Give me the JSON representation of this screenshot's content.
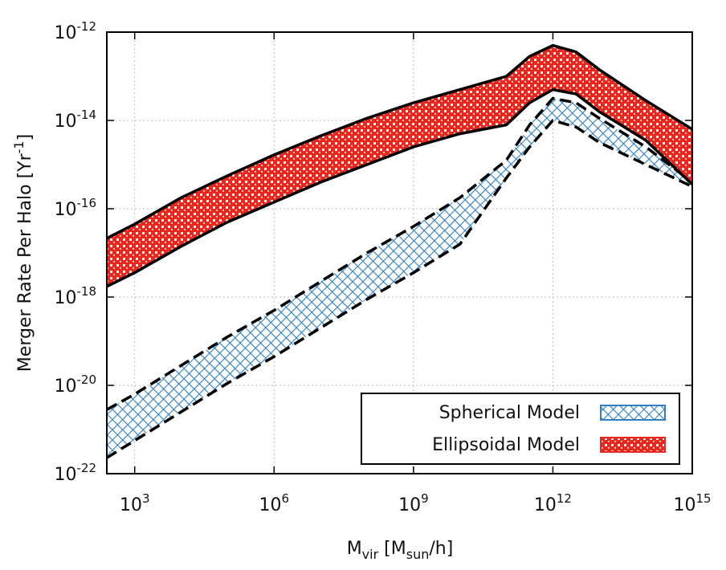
{
  "chart_data": {
    "type": "band",
    "xlabel": [
      {
        "text": "M"
      },
      {
        "text": "vir",
        "script": "sub"
      },
      {
        "text": " [M"
      },
      {
        "text": "sun",
        "script": "sub"
      },
      {
        "text": "/h]"
      }
    ],
    "ylabel": [
      {
        "text": "Merger Rate Per Halo [Yr"
      },
      {
        "text": "-1",
        "script": "super"
      },
      {
        "text": "]"
      }
    ],
    "log_x": true,
    "log_y": true,
    "grid": true,
    "legend": "lower right",
    "xlim": [
      251,
      1000000000000000.0
    ],
    "ylim": [
      1e-22,
      1e-12
    ],
    "xticks": [
      {
        "value": 1000,
        "label": "103"
      },
      {
        "value": 1000000.0,
        "label": "106"
      },
      {
        "value": 1000000000.0,
        "label": "109"
      },
      {
        "value": 1000000000000.0,
        "label": "1012"
      },
      {
        "value": 1000000000000000.0,
        "label": "1015"
      }
    ],
    "yticks": [
      {
        "value": 1e-22,
        "label": "10-22"
      },
      {
        "value": 1e-20,
        "label": "10-20"
      },
      {
        "value": 1e-18,
        "label": "10-18"
      },
      {
        "value": 1e-16,
        "label": "10-16"
      },
      {
        "value": 1e-14,
        "label": "10-14"
      },
      {
        "value": 1e-12,
        "label": "10-12"
      }
    ],
    "x": [
      251,
      1000,
      10000.0,
      100000.0,
      1000000.0,
      10000000.0,
      100000000.0,
      1000000000.0,
      10000000000.0,
      100000000000.0,
      316000000000.0,
      1000000000000.0,
      3160000000000.0,
      10000000000000.0,
      100000000000000.0,
      1000000000000000.0
    ],
    "series": [
      {
        "name": "Spherical Model",
        "color": "#2f7fc1",
        "pattern": "crosshatch",
        "edge": "dashed",
        "upper": [
          2.82e-21,
          6.31e-21,
          2.82e-20,
          1.26e-19,
          5e-19,
          2.24e-18,
          1e-17,
          3.98e-17,
          1.78e-16,
          1.26e-15,
          7.94e-15,
          3.16e-14,
          2.51e-14,
          1.12e-14,
          2.51e-15,
          3.98e-16
        ],
        "lower": [
          2.29e-22,
          5.62e-22,
          2.51e-21,
          1.12e-20,
          4.47e-20,
          2e-19,
          8.91e-19,
          3.55e-18,
          1.58e-17,
          5e-16,
          2.51e-15,
          1e-14,
          7.08e-15,
          3.16e-15,
          1e-15,
          3.16e-16
        ]
      },
      {
        "name": "Ellipsoidal Model",
        "color": "#e8281e",
        "pattern": "checker",
        "edge": "solid",
        "upper": [
          2.14e-17,
          4.47e-17,
          1.78e-16,
          5.62e-16,
          1.66e-15,
          4.47e-15,
          1.12e-14,
          2.51e-14,
          5e-14,
          1e-13,
          2.82e-13,
          5e-13,
          3.55e-13,
          1.41e-13,
          2.82e-14,
          6.31e-15
        ],
        "lower": [
          1.74e-18,
          3.55e-18,
          1.41e-17,
          5e-17,
          1.41e-16,
          3.98e-16,
          1e-15,
          2.51e-15,
          5e-15,
          7.94e-15,
          2.51e-14,
          5e-14,
          3.98e-14,
          1.58e-14,
          3.55e-15,
          3.55e-16
        ]
      }
    ]
  }
}
